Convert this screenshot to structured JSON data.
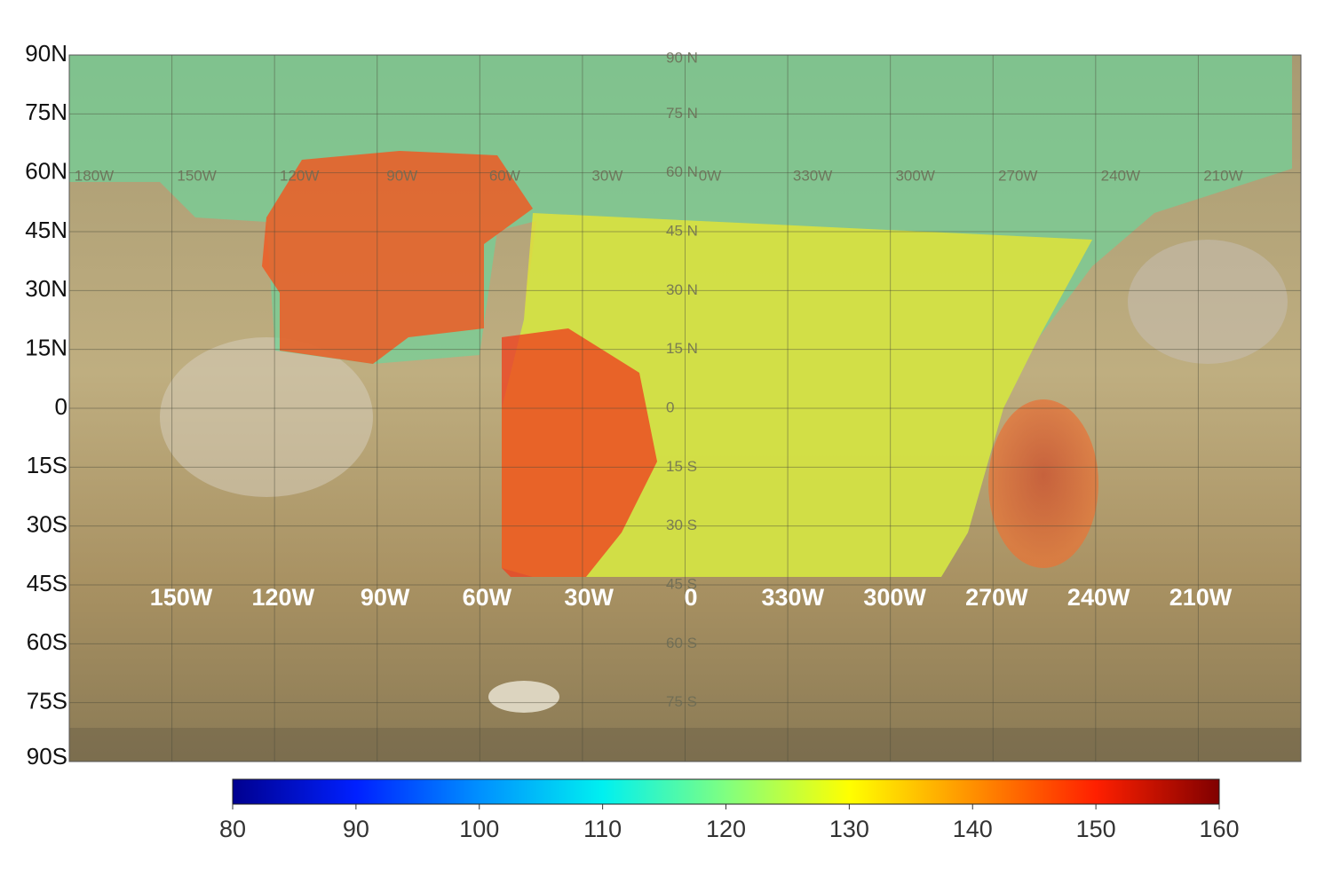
{
  "map": {
    "lat_labels": [
      "90N",
      "75N",
      "60N",
      "45N",
      "30N",
      "15N",
      "0",
      "15S",
      "30S",
      "45S",
      "60S",
      "75S",
      "90S"
    ],
    "lon_labels": [
      "150W",
      "120W",
      "90W",
      "60W",
      "30W",
      "0",
      "330W",
      "300W",
      "270W",
      "240W",
      "210W"
    ],
    "grid_lat_labels": [
      "90 N",
      "75 N",
      "60 N",
      "45 N",
      "30 N",
      "15 N",
      "0",
      "15 S",
      "30 S",
      "45 S",
      "60 S",
      "75 S"
    ],
    "grid_lon_labels": [
      "180W",
      "150W",
      "120W",
      "90W",
      "60W",
      "30W",
      "0W",
      "330W",
      "300W",
      "270W",
      "240W",
      "210W"
    ]
  },
  "colorbar": {
    "range": [
      80,
      160
    ],
    "ticks": [
      80,
      90,
      100,
      110,
      120,
      130,
      140,
      150,
      160
    ]
  }
}
